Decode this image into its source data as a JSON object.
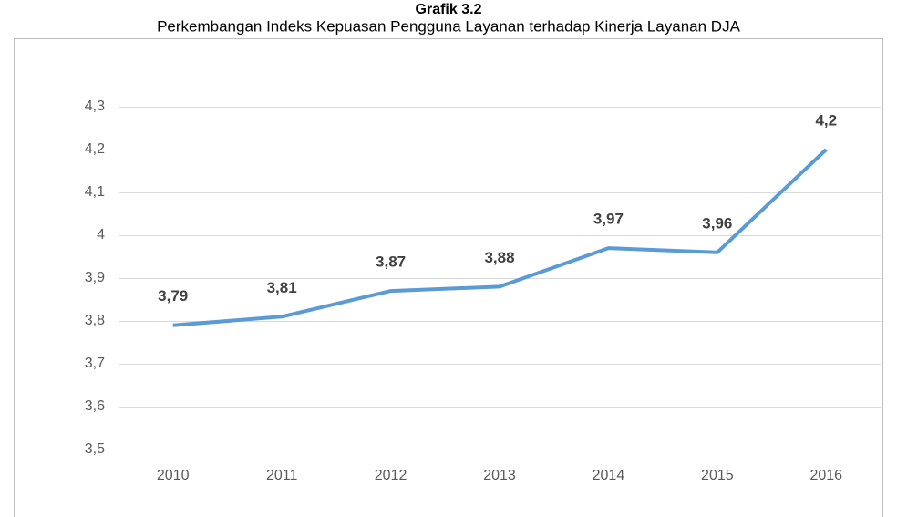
{
  "chart_data": {
    "type": "line",
    "title": "Grafik  3.2",
    "subtitle": "Perkembangan Indeks Kepuasan Pengguna Layanan terhadap Kinerja Layanan DJA",
    "categories": [
      "2010",
      "2011",
      "2012",
      "2013",
      "2014",
      "2015",
      "2016"
    ],
    "series": [
      {
        "color": "#5b9bd5",
        "values": [
          3.79,
          3.81,
          3.87,
          3.88,
          3.97,
          3.96,
          4.2
        ],
        "value_labels": [
          "3,79",
          "3,81",
          "3,87",
          "3,88",
          "3,97",
          "3,96",
          "4,2"
        ]
      }
    ],
    "ylim": [
      3.5,
      4.3
    ],
    "yticks": [
      {
        "value": 3.5,
        "label": "3,5"
      },
      {
        "value": 3.6,
        "label": "3,6"
      },
      {
        "value": 3.7,
        "label": "3,7"
      },
      {
        "value": 3.8,
        "label": "3,8"
      },
      {
        "value": 3.9,
        "label": "3,9"
      },
      4,
      {
        "value": 4.1,
        "label": "4,1"
      },
      {
        "value": 4.2,
        "label": "4,2"
      },
      {
        "value": 4.3,
        "label": "4,3"
      }
    ],
    "grid": true
  }
}
